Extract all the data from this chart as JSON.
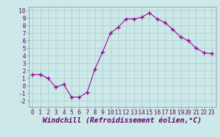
{
  "x": [
    0,
    1,
    2,
    3,
    4,
    5,
    6,
    7,
    8,
    9,
    10,
    11,
    12,
    13,
    14,
    15,
    16,
    17,
    18,
    19,
    20,
    21,
    22,
    23
  ],
  "y": [
    1.5,
    1.5,
    1.0,
    -0.2,
    0.2,
    -1.5,
    -1.5,
    -0.9,
    2.2,
    4.5,
    7.0,
    7.8,
    8.9,
    8.9,
    9.1,
    9.7,
    8.9,
    8.4,
    7.5,
    6.5,
    6.0,
    5.0,
    4.4,
    4.3
  ],
  "line_color": "#990099",
  "marker": "D",
  "marker_size": 2.0,
  "bg_color": "#cce8e8",
  "grid_color": "#aacccc",
  "xlabel": "Windchill (Refroidissement éolien,°C)",
  "xlabel_fontsize": 7.5,
  "tick_fontsize": 6.0,
  "xlim": [
    -0.5,
    23.5
  ],
  "ylim": [
    -2.8,
    10.5
  ],
  "yticks": [
    -2,
    -1,
    0,
    1,
    2,
    3,
    4,
    5,
    6,
    7,
    8,
    9,
    10
  ],
  "xticks": [
    0,
    1,
    2,
    3,
    4,
    5,
    6,
    7,
    8,
    9,
    10,
    11,
    12,
    13,
    14,
    15,
    16,
    17,
    18,
    19,
    20,
    21,
    22,
    23
  ]
}
